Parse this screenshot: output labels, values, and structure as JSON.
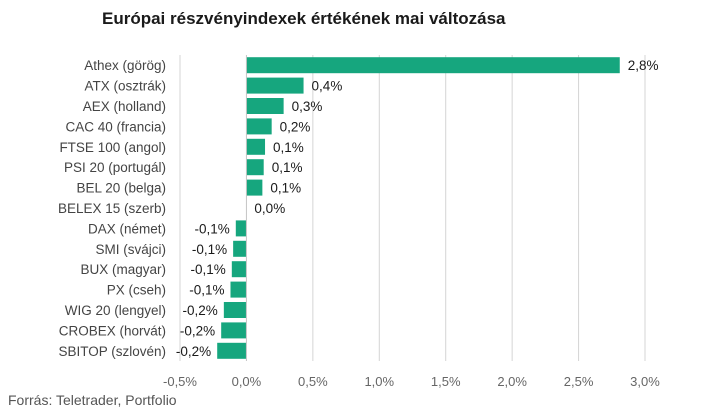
{
  "title": "Európai részvényindexek értékének mai változása",
  "source": "Forrás: Teletrader, Portfolio",
  "chart_data": {
    "type": "bar",
    "orientation": "horizontal",
    "title": "Európai részvényindexek értékének mai változása",
    "xlabel": "",
    "ylabel": "",
    "xlim": [
      -0.5,
      3.0
    ],
    "xticks": [
      -0.5,
      0.0,
      0.5,
      1.0,
      1.5,
      2.0,
      2.5,
      3.0
    ],
    "xtick_labels": [
      "-0,5%",
      "0,0%",
      "0,5%",
      "1,0%",
      "1,5%",
      "2,0%",
      "2,5%",
      "3,0%"
    ],
    "grid": "vertical",
    "bar_color": "#16a67e",
    "categories": [
      "Athex (görög)",
      "ATX (osztrák)",
      "AEX (holland)",
      "CAC 40 (francia)",
      "FTSE 100 (angol)",
      "PSI 20 (portugál)",
      "BEL 20 (belga)",
      "BELEX 15 (szerb)",
      "DAX (német)",
      "SMI (svájci)",
      "BUX (magyar)",
      "PX (cseh)",
      "WIG 20 (lengyel)",
      "CROBEX (horvát)",
      "SBITOP (szlovén)"
    ],
    "values": [
      2.81,
      0.43,
      0.28,
      0.19,
      0.14,
      0.13,
      0.12,
      0.0,
      -0.08,
      -0.1,
      -0.11,
      -0.12,
      -0.17,
      -0.19,
      -0.22
    ],
    "value_labels": [
      "2,8%",
      "0,4%",
      "0,3%",
      "0,2%",
      "0,1%",
      "0,1%",
      "0,1%",
      "0,0%",
      "-0,1%",
      "-0,1%",
      "-0,1%",
      "-0,1%",
      "-0,2%",
      "-0,2%",
      "-0,2%"
    ]
  }
}
